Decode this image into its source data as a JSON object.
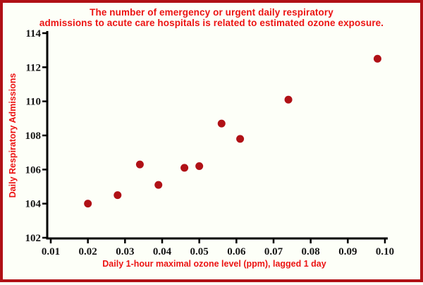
{
  "colors": {
    "background": "#FDFFF8",
    "frame_border": "#B01116",
    "title_text": "#EC1313",
    "axis_label_text": "#EC1313",
    "tick_text": "#151515",
    "axis_line": "#000000",
    "marker": "#B01116"
  },
  "chart_data": {
    "type": "scatter",
    "title_line1": "The number of emergency or urgent daily respiratory",
    "title_line2": "admissions to acute care hospitals is related to estimated ozone exposure.",
    "xlabel": "Daily 1-hour maximal ozone level (ppm), lagged 1 day",
    "ylabel": "Daily Respiratory Admissions",
    "xlim": [
      0.01,
      0.1
    ],
    "ylim": [
      102,
      114
    ],
    "grid": false,
    "legend": "none",
    "xticks": [
      {
        "value": 0.01,
        "label": "0.01"
      },
      {
        "value": 0.02,
        "label": "0.02"
      },
      {
        "value": 0.03,
        "label": "0.03"
      },
      {
        "value": 0.04,
        "label": "0.04"
      },
      {
        "value": 0.05,
        "label": "0.05"
      },
      {
        "value": 0.06,
        "label": "0.06"
      },
      {
        "value": 0.07,
        "label": "0.07"
      },
      {
        "value": 0.08,
        "label": "0.08"
      },
      {
        "value": 0.09,
        "label": "0.09"
      },
      {
        "value": 0.1,
        "label": "0.10"
      }
    ],
    "yticks": [
      {
        "value": 102,
        "label": "102"
      },
      {
        "value": 104,
        "label": "104"
      },
      {
        "value": 106,
        "label": "106"
      },
      {
        "value": 108,
        "label": "108"
      },
      {
        "value": 110,
        "label": "110"
      },
      {
        "value": 112,
        "label": "112"
      },
      {
        "value": 114,
        "label": "114"
      }
    ],
    "points": [
      {
        "x": 0.02,
        "y": 104.0
      },
      {
        "x": 0.028,
        "y": 104.5
      },
      {
        "x": 0.034,
        "y": 106.3
      },
      {
        "x": 0.039,
        "y": 105.1
      },
      {
        "x": 0.046,
        "y": 106.1
      },
      {
        "x": 0.05,
        "y": 106.2
      },
      {
        "x": 0.056,
        "y": 108.7
      },
      {
        "x": 0.061,
        "y": 107.8
      },
      {
        "x": 0.074,
        "y": 110.1
      },
      {
        "x": 0.098,
        "y": 112.5
      }
    ]
  }
}
